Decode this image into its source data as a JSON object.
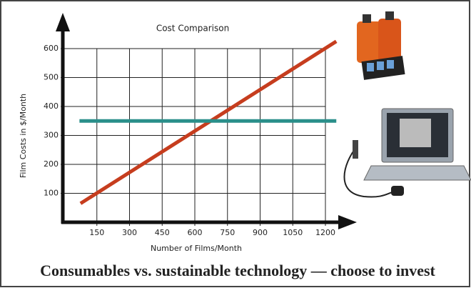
{
  "chart_data": {
    "type": "line",
    "title": "Cost Comparison",
    "x_label": "Number of Films/Month",
    "y_label": "Film Costs in $/Month",
    "caption": "Consumables vs. sustainable technology — choose to invest",
    "series": [
      {
        "color": "#c63d1e",
        "x": [
          75,
          1250
        ],
        "values": [
          65,
          625
        ]
      },
      {
        "color": "#2a8f8a",
        "x": [
          70,
          1250
        ],
        "values": [
          350,
          350
        ]
      }
    ],
    "xlim": [
      0,
      1200
    ],
    "xticks": [
      150,
      300,
      450,
      600,
      750,
      900,
      1050,
      1200
    ],
    "ylim": [
      0,
      600
    ],
    "yticks": [
      100,
      200,
      300,
      400,
      500,
      600
    ],
    "grid": true
  }
}
